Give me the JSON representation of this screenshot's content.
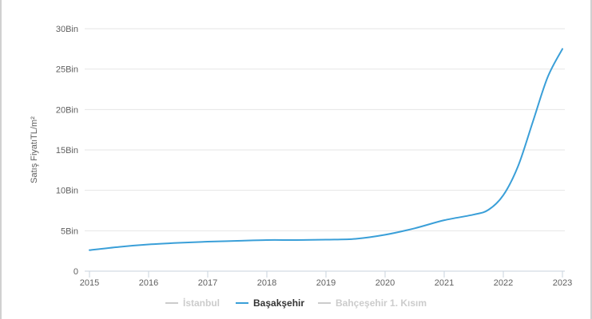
{
  "chart_data": {
    "type": "line",
    "ylabel": "Satış FiyatıTL/m²",
    "ylim": [
      0,
      30000
    ],
    "yticks": [
      0,
      5000,
      10000,
      15000,
      20000,
      25000,
      30000
    ],
    "ytick_labels": [
      "0",
      "5Bin",
      "10Bin",
      "15Bin",
      "20Bin",
      "25Bin",
      "30Bin"
    ],
    "xlim": [
      2015,
      2023
    ],
    "xticks": [
      2015,
      2016,
      2017,
      2018,
      2019,
      2020,
      2021,
      2022,
      2023
    ],
    "xtick_labels": [
      "2015",
      "2016",
      "2017",
      "2018",
      "2019",
      "2020",
      "2021",
      "2022",
      "2023"
    ],
    "grid": true,
    "legend_position": "bottom-center",
    "legend": [
      {
        "name": "İstanbul",
        "color": "#cccccc",
        "visible": false
      },
      {
        "name": "Başakşehir",
        "color": "#3a9fd8",
        "visible": true
      },
      {
        "name": "Bahçeşehir 1. Kısım",
        "color": "#cccccc",
        "visible": false
      }
    ],
    "series": [
      {
        "name": "Başakşehir",
        "color": "#3a9fd8",
        "x": [
          2015.0,
          2015.5,
          2016.0,
          2016.5,
          2017.0,
          2017.5,
          2018.0,
          2018.5,
          2019.0,
          2019.5,
          2020.0,
          2020.5,
          2021.0,
          2021.5,
          2021.75,
          2022.0,
          2022.25,
          2022.5,
          2022.75,
          2023.0
        ],
        "values": [
          2600,
          3000,
          3300,
          3500,
          3650,
          3750,
          3850,
          3850,
          3900,
          4000,
          4500,
          5300,
          6300,
          7000,
          7600,
          9400,
          13000,
          18500,
          24000,
          27500
        ]
      }
    ]
  }
}
